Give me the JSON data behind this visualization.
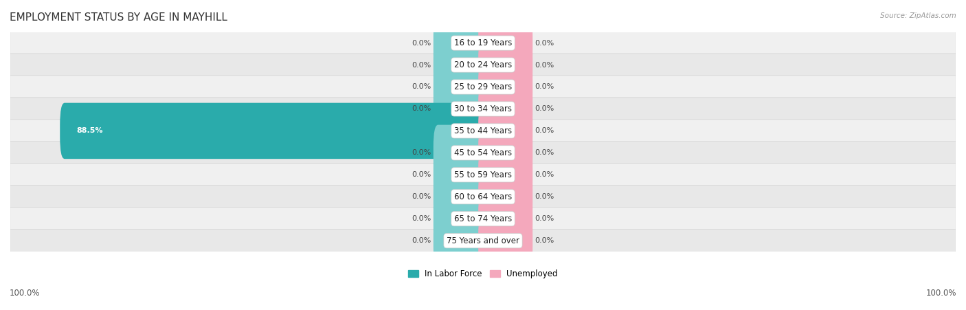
{
  "title": "EMPLOYMENT STATUS BY AGE IN MAYHILL",
  "source": "Source: ZipAtlas.com",
  "categories": [
    "16 to 19 Years",
    "20 to 24 Years",
    "25 to 29 Years",
    "30 to 34 Years",
    "35 to 44 Years",
    "45 to 54 Years",
    "55 to 59 Years",
    "60 to 64 Years",
    "65 to 74 Years",
    "75 Years and over"
  ],
  "labor_force": [
    0.0,
    0.0,
    0.0,
    0.0,
    88.5,
    0.0,
    0.0,
    0.0,
    0.0,
    0.0
  ],
  "unemployed": [
    0.0,
    0.0,
    0.0,
    0.0,
    0.0,
    0.0,
    0.0,
    0.0,
    0.0,
    0.0
  ],
  "color_labor_light": "#7dcfcf",
  "color_labor_dark": "#2aabab",
  "color_unemployed": "#f4a8bc",
  "row_bg_even": "#f0f0f0",
  "row_bg_odd": "#e8e8e8",
  "axis_limit": 100,
  "small_bar": 9.5,
  "legend_labor": "In Labor Force",
  "legend_unemployed": "Unemployed",
  "left_label": "100.0%",
  "right_label": "100.0%",
  "title_fontsize": 11,
  "value_fontsize": 8,
  "category_fontsize": 8.5
}
